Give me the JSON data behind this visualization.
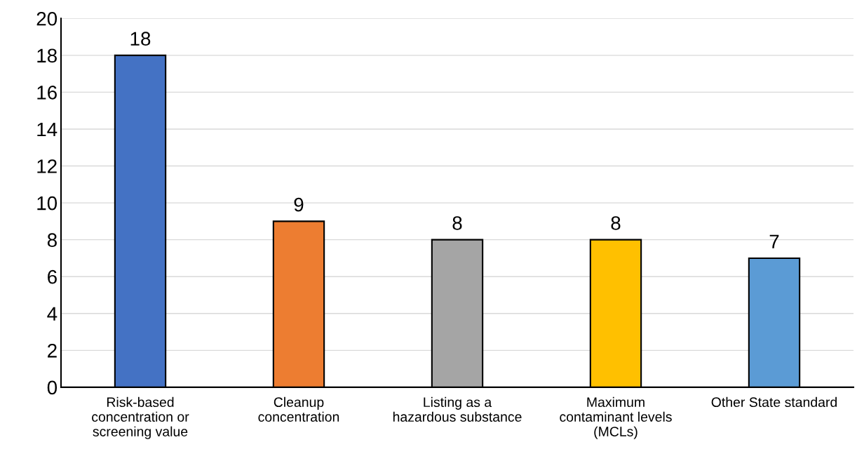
{
  "chart_data": {
    "type": "bar",
    "categories": [
      "Risk-based\nconcentration or\nscreening value",
      "Cleanup\nconcentration",
      "Listing as a\nhazardous substance",
      "Maximum\ncontaminant levels\n(MCLs)",
      "Other State standard"
    ],
    "values": [
      18,
      9,
      8,
      8,
      7
    ],
    "colors": [
      "#4472c4",
      "#ed7d31",
      "#a5a5a5",
      "#ffc000",
      "#5b9bd5"
    ],
    "ylim": [
      0,
      20
    ],
    "yticks": [
      0,
      2,
      4,
      6,
      8,
      10,
      12,
      14,
      16,
      18,
      20
    ],
    "grid": "y",
    "data_labels": true
  }
}
